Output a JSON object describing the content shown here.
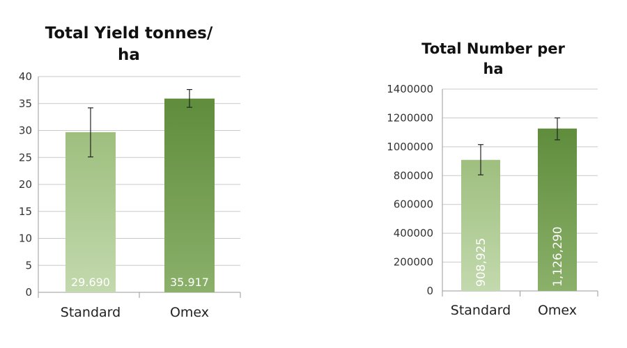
{
  "chart_data": [
    {
      "type": "bar",
      "title_lines": [
        "Total Yield tonnes/",
        "ha"
      ],
      "categories": [
        "Standard",
        "Omex"
      ],
      "values": [
        29.69,
        35.917
      ],
      "data_labels": [
        "29.690",
        "35.917"
      ],
      "error_bars": [
        [
          25.1,
          34.2
        ],
        [
          34.3,
          37.6
        ]
      ],
      "ylim": [
        0,
        40
      ],
      "yticks": [
        0,
        5,
        10,
        15,
        20,
        25,
        30,
        35,
        40
      ],
      "ytick_labels": [
        "0",
        "5",
        "10",
        "15",
        "20",
        "25",
        "30",
        "35",
        "40"
      ],
      "grid": true,
      "colors": [
        [
          "#c3d9ae",
          "#9ebf7e"
        ],
        [
          "#8bb06a",
          "#5f8d3c"
        ]
      ]
    },
    {
      "type": "bar",
      "title_lines": [
        "Total Number per",
        "ha"
      ],
      "categories": [
        "Standard",
        "Omex"
      ],
      "values": [
        908925,
        1126290
      ],
      "data_labels": [
        "908,925",
        "1,126,290"
      ],
      "error_bars": [
        [
          805000,
          1015000
        ],
        [
          1048000,
          1200000
        ]
      ],
      "ylim": [
        0,
        1400000
      ],
      "yticks": [
        0,
        200000,
        400000,
        600000,
        800000,
        1000000,
        1200000,
        1400000
      ],
      "ytick_labels": [
        "0",
        "200000",
        "400000",
        "600000",
        "800000",
        "1000000",
        "1200000",
        "1400000"
      ],
      "grid": true,
      "colors": [
        [
          "#c3d9ae",
          "#9ebf7e"
        ],
        [
          "#8bb06a",
          "#5f8d3c"
        ]
      ]
    }
  ]
}
